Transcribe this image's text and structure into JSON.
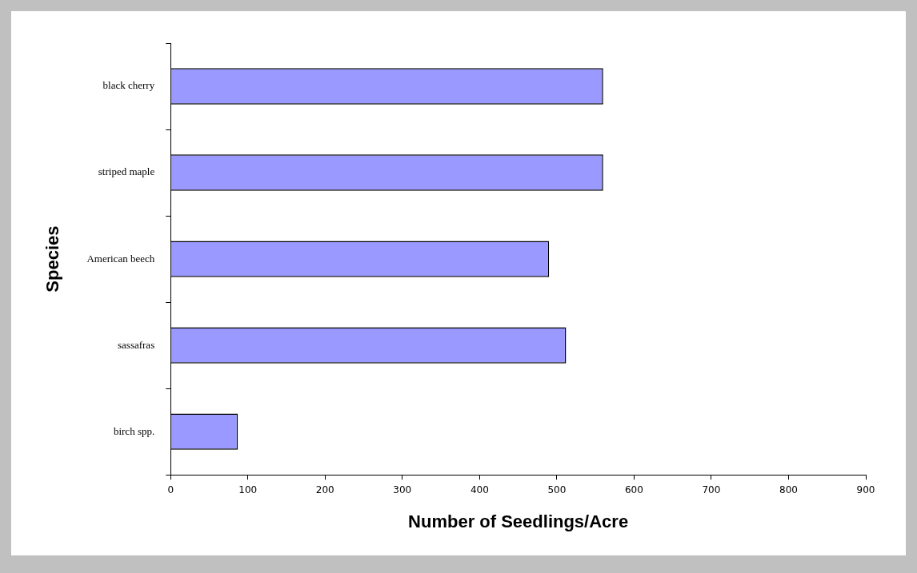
{
  "chart_data": {
    "type": "bar",
    "orientation": "horizontal",
    "xlabel": "Number of Seedlings/Acre",
    "ylabel": "Species",
    "categories": [
      "black cherry",
      "striped maple",
      "American beech",
      "sassafras",
      "birch spp."
    ],
    "values": [
      560,
      560,
      490,
      512,
      87
    ],
    "color": "#9999ff",
    "xlim": [
      0,
      900
    ],
    "xticks": [
      0,
      100,
      200,
      300,
      400,
      500,
      600,
      700,
      800,
      900
    ]
  }
}
